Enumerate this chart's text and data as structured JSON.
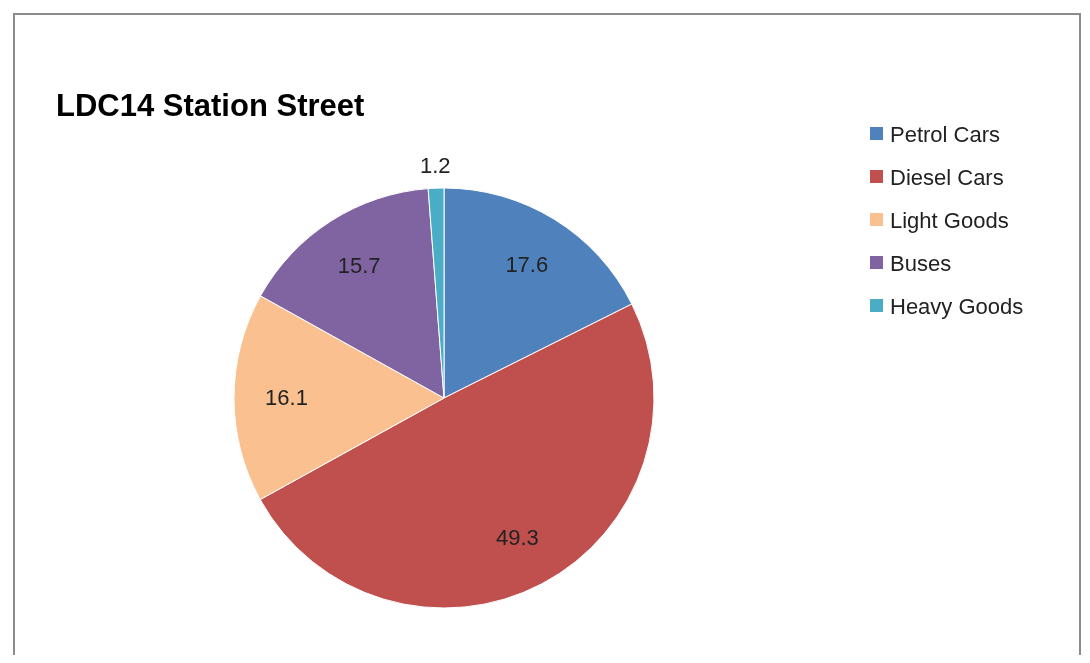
{
  "chart_data": {
    "type": "pie",
    "title": "LDC14 Station Street",
    "categories": [
      "Petrol Cars",
      "Diesel Cars",
      "Light Goods",
      "Buses",
      "Heavy Goods"
    ],
    "values": [
      17.6,
      49.3,
      16.1,
      15.7,
      1.2
    ],
    "colors": [
      "#4f81bd",
      "#c0504d",
      "#fac090",
      "#8064a2",
      "#4bacc6"
    ],
    "data_labels": true,
    "legend": "right"
  }
}
